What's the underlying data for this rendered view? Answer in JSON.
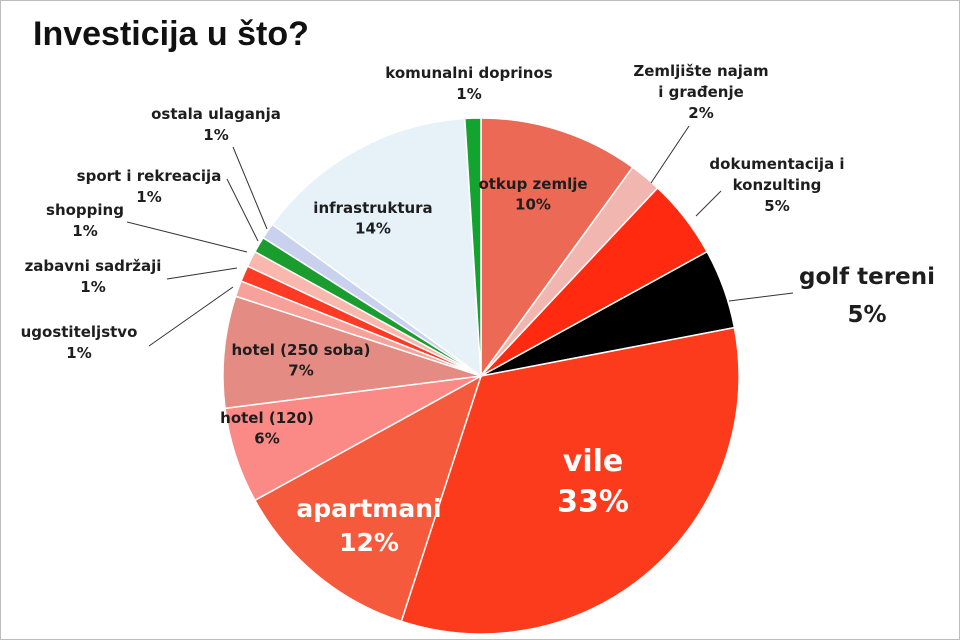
{
  "chart_data": {
    "type": "pie",
    "title": "Investicija u što?",
    "slices": [
      {
        "label": "otkup zemlje",
        "value": 10,
        "value_label": "10%",
        "color": "#ec6a55"
      },
      {
        "label": "Zemljište najam i građenje",
        "value": 2,
        "value_label": "2%",
        "color": "#f2b6b0"
      },
      {
        "label": "dokumentacija i konzulting",
        "value": 5,
        "value_label": "5%",
        "color": "#ff2a10"
      },
      {
        "label": "golf tereni",
        "value": 5,
        "value_label": "5%",
        "color": "#000000"
      },
      {
        "label": "vile",
        "value": 33,
        "value_label": "33%",
        "color": "#fc3a1c"
      },
      {
        "label": "apartmani",
        "value": 12,
        "value_label": "12%",
        "color": "#f55a3c"
      },
      {
        "label": "hotel (120)",
        "value": 6,
        "value_label": "6%",
        "color": "#fb8a86"
      },
      {
        "label": "hotel (250 soba)",
        "value": 7,
        "value_label": "7%",
        "color": "#e48c84"
      },
      {
        "label": "ugostiteljstvo",
        "value": 1,
        "value_label": "1%",
        "color": "#f7a19a"
      },
      {
        "label": "zabavni sadržaji",
        "value": 1,
        "value_label": "1%",
        "color": "#ff3a25"
      },
      {
        "label": "shopping",
        "value": 1,
        "value_label": "1%",
        "color": "#f9b7ae"
      },
      {
        "label": "sport i rekreacija",
        "value": 1,
        "value_label": "1%",
        "color": "#1a9c2e"
      },
      {
        "label": "ostala ulaganja",
        "value": 1,
        "value_label": "1%",
        "color": "#c9d1ee"
      },
      {
        "label": "infrastruktura",
        "value": 14,
        "value_label": "14%",
        "color": "#e6f2f8"
      },
      {
        "label": "komunalni doprinos",
        "value": 1,
        "value_label": "1%",
        "color": "#12a42f"
      }
    ]
  }
}
